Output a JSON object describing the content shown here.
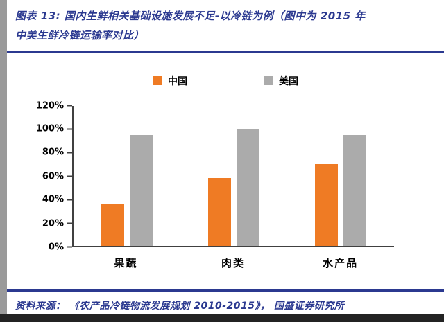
{
  "header": {
    "title_line1": "图表 13:  国内生鲜相关基础设施发展不足-以冷链为例（图中为 2015 年",
    "title_line2": "中美生鲜冷链运输率对比）"
  },
  "chart_data": {
    "type": "bar",
    "title": "国内生鲜相关基础设施发展不足-以冷链为例（图中为2015年中美生鲜冷链运输率对比）",
    "categories": [
      "果蔬",
      "肉类",
      "水产品"
    ],
    "series": [
      {
        "name": "中国",
        "key": "china",
        "color": "#EF7B24",
        "values": [
          36,
          58,
          70
        ]
      },
      {
        "name": "美国",
        "key": "us",
        "color": "#ABABAB",
        "values": [
          95,
          100,
          95
        ]
      }
    ],
    "xlabel": "",
    "ylabel": "",
    "ylim": [
      0,
      120
    ],
    "ytick_step": 20,
    "ytick_labels": [
      "0%",
      "20%",
      "40%",
      "60%",
      "80%",
      "100%",
      "120%"
    ],
    "unit": "percent",
    "grid": false,
    "legend_position": "top"
  },
  "footer": {
    "source_text": "资料来源：  《农产品冷链物流发展规划 2010-2015》，  国盛证券研究所"
  },
  "colors": {
    "accent_navy": "#2B3990",
    "china_orange": "#EF7B24",
    "us_gray": "#ABABAB",
    "axis": "#404040",
    "left_strip_gray": "#9A9A9A",
    "bottom_bar_dark": "#232323"
  }
}
